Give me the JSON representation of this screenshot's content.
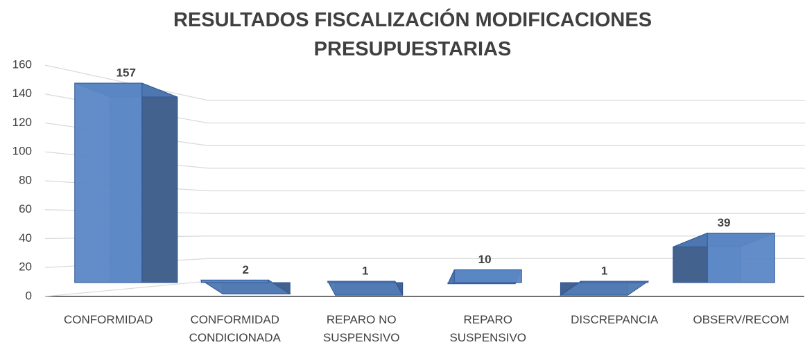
{
  "chart_data": {
    "type": "bar3d",
    "title": "RESULTADOS FISCALIZACIÓN MODIFICACIONES PRESUPUESTARIAS",
    "categories": [
      "CONFORMIDAD",
      "CONFORMIDAD CONDICIONADA",
      "REPARO NO SUSPENSIVO",
      "REPARO SUSPENSIVO",
      "DISCREPANCIA",
      "OBSERV/RECOM"
    ],
    "values": [
      157,
      2,
      1,
      10,
      1,
      39
    ],
    "color": "#5b87c5",
    "ylim": [
      0,
      160
    ],
    "yticks": [
      0,
      20,
      40,
      60,
      80,
      100,
      120,
      140,
      160
    ],
    "grid": true
  }
}
